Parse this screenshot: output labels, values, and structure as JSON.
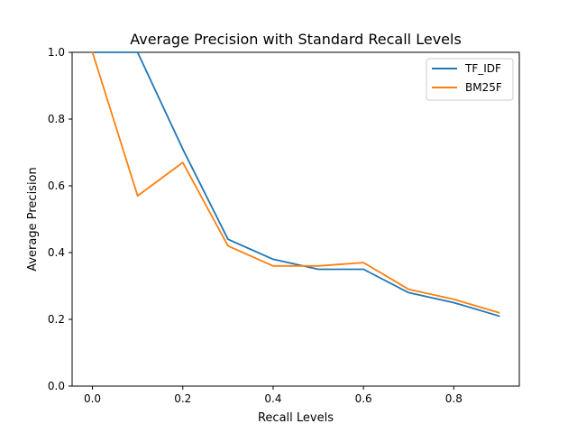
{
  "chart_data": {
    "type": "line",
    "title": "Average Precision with Standard Recall Levels",
    "xlabel": "Recall Levels",
    "ylabel": "Average Precision",
    "x": [
      0.0,
      0.1,
      0.2,
      0.3,
      0.4,
      0.5,
      0.6,
      0.7,
      0.8,
      0.9
    ],
    "xlim": [
      -0.045,
      0.945
    ],
    "ylim": [
      0.0,
      1.0
    ],
    "xticks": [
      "0.0",
      "0.2",
      "0.4",
      "0.6",
      "0.8"
    ],
    "yticks": [
      "0.0",
      "0.2",
      "0.4",
      "0.6",
      "0.8",
      "1.0"
    ],
    "grid": false,
    "legend_position": "top-right",
    "series": [
      {
        "name": "TF_IDF",
        "color": "#1f77b4",
        "values": [
          1.0,
          1.0,
          0.71,
          0.44,
          0.38,
          0.35,
          0.35,
          0.28,
          0.25,
          0.21
        ]
      },
      {
        "name": "BM25F",
        "color": "#ff7f0e",
        "values": [
          1.0,
          0.57,
          0.67,
          0.42,
          0.36,
          0.36,
          0.37,
          0.29,
          0.26,
          0.22
        ]
      }
    ]
  }
}
